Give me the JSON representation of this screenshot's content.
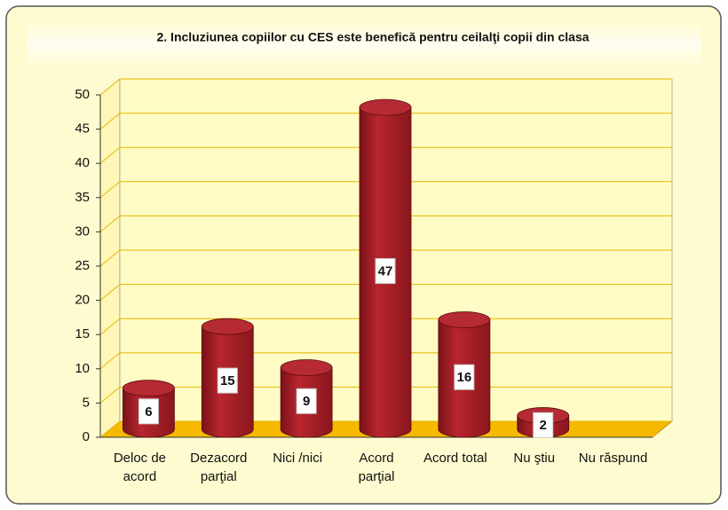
{
  "chart_data": {
    "type": "bar",
    "title": "2. Incluziunea copiilor cu CES este benefică pentru ceilalţi copii din clasa",
    "categories": [
      "Deloc de acord",
      "Dezacord parţial",
      "Nici /nici",
      "Acord parţial",
      "Acord total",
      "Nu ştiu",
      "Nu răspund"
    ],
    "values": [
      6,
      15,
      9,
      47,
      16,
      2,
      null
    ],
    "color": "#a51d26",
    "ylim": [
      0,
      50
    ],
    "yticks": [
      0,
      5,
      10,
      15,
      20,
      25,
      30,
      35,
      40,
      45,
      50
    ],
    "grid": true
  }
}
